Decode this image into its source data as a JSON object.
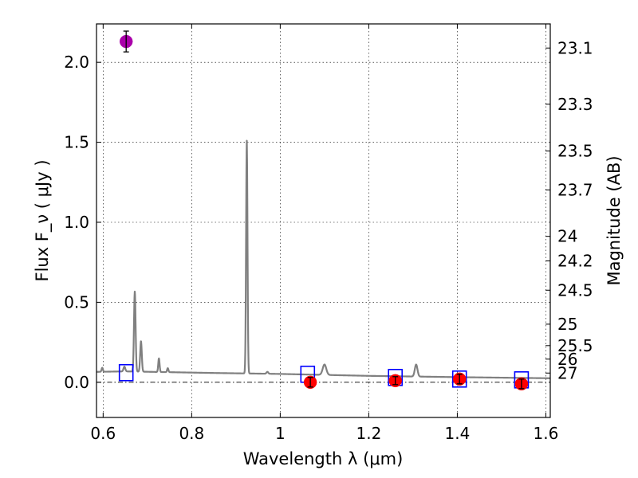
{
  "chart_data": {
    "type": "line",
    "xlabel": "Wavelength  λ (μm)",
    "ylabel": "Flux  F_ν  ( μJy )",
    "ylabel_right": "Magnitude (AB)",
    "xlim": [
      0.585,
      1.61
    ],
    "ylim": [
      -0.22,
      2.24
    ],
    "grid": true,
    "x_ticks": [
      0.6,
      0.8,
      1.0,
      1.2,
      1.4,
      1.6
    ],
    "x_tick_labels": [
      "0.6",
      "0.8",
      "1",
      "1.2",
      "1.4",
      "1.6"
    ],
    "y_ticks": [
      0.0,
      0.5,
      1.0,
      1.5,
      2.0
    ],
    "y_tick_labels": [
      "0.0",
      "0.5",
      "1.0",
      "1.5",
      "2.0"
    ],
    "right_ticks": [
      "23.1",
      "23.3",
      "23.5",
      "23.7",
      "24",
      "24.2",
      "24.5",
      "25",
      "25.5",
      "26",
      "27"
    ],
    "zero_line": 0.0,
    "series": [
      {
        "kind": "model-spectrum",
        "color": "#808080",
        "continuum": [
          [
            0.585,
            0.065
          ],
          [
            0.65,
            0.068
          ],
          [
            0.85,
            0.058
          ],
          [
            1.0,
            0.052
          ],
          [
            1.2,
            0.04
          ],
          [
            1.4,
            0.032
          ],
          [
            1.61,
            0.025
          ]
        ],
        "lines": [
          {
            "x": 0.598,
            "h": 0.025,
            "w": 0.0015
          },
          {
            "x": 0.648,
            "h": 0.03,
            "w": 0.002
          },
          {
            "x": 0.6715,
            "h": 0.5,
            "w": 0.0018
          },
          {
            "x": 0.6855,
            "h": 0.19,
            "w": 0.0018
          },
          {
            "x": 0.726,
            "h": 0.085,
            "w": 0.0015
          },
          {
            "x": 0.746,
            "h": 0.025,
            "w": 0.0015
          },
          {
            "x": 0.9245,
            "h": 1.455,
            "w": 0.0016
          },
          {
            "x": 0.971,
            "h": 0.012,
            "w": 0.002
          },
          {
            "x": 1.1,
            "h": 0.065,
            "w": 0.004
          },
          {
            "x": 1.307,
            "h": 0.075,
            "w": 0.003
          }
        ]
      },
      {
        "kind": "band-synthetic",
        "marker": "square",
        "color": "#0000ff",
        "points": [
          [
            0.652,
            0.06
          ],
          [
            1.062,
            0.05
          ],
          [
            1.26,
            0.03
          ],
          [
            1.405,
            0.02
          ],
          [
            1.545,
            0.015
          ]
        ]
      },
      {
        "kind": "observed",
        "marker": "circle",
        "color": "#ff0000",
        "points": [
          [
            1.068,
            0.0,
            0.03
          ],
          [
            1.26,
            0.01,
            0.025
          ],
          [
            1.405,
            0.02,
            0.03
          ],
          [
            1.545,
            -0.01,
            0.03
          ]
        ]
      },
      {
        "kind": "observed-optical",
        "marker": "circle",
        "color": "#aa00aa",
        "points": [
          [
            0.652,
            2.13,
            0.065
          ]
        ]
      }
    ]
  }
}
